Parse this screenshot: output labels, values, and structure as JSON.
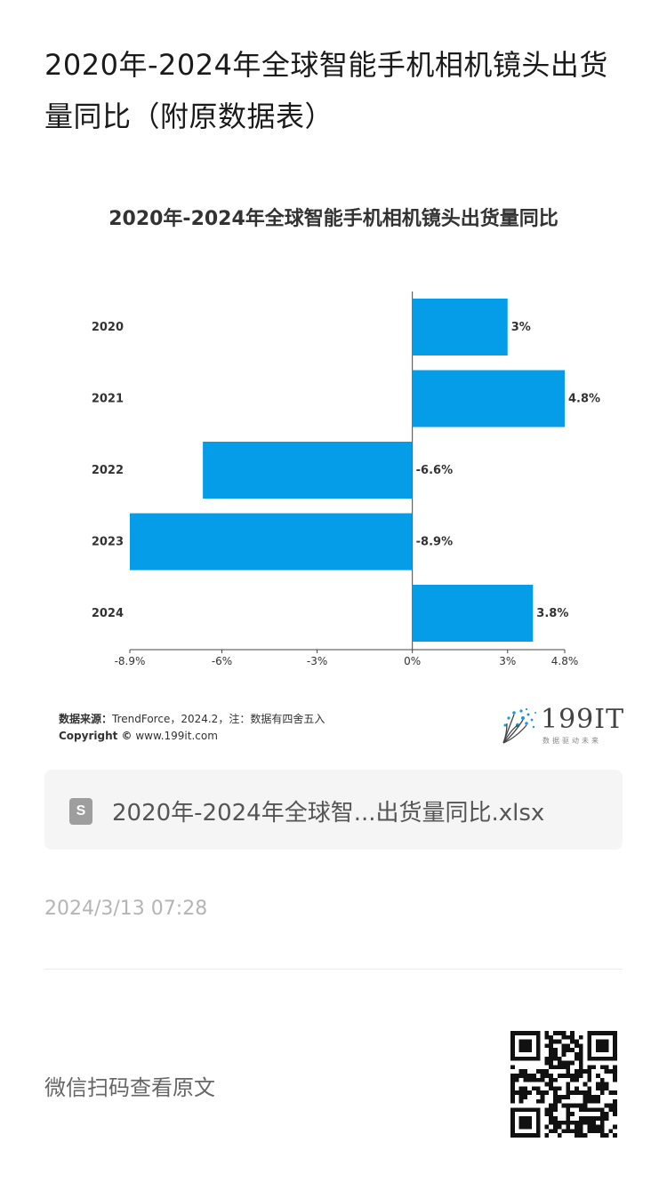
{
  "page": {
    "title": "2020年-2024年全球智能手机相机镜头出货量同比（附原数据表）"
  },
  "chart": {
    "source_label": "数据来源：",
    "source_text": "TrendForce，2024.2，注：数据有四舍五入",
    "copyright_label": "Copyright ©",
    "copyright_text": " www.199it.com",
    "logo_text": "199IT",
    "logo_sub": "数据驱动未来"
  },
  "chart_data": {
    "type": "bar",
    "orientation": "horizontal",
    "title": "2020年-2024年全球智能手机相机镜头出货量同比",
    "categories": [
      "2020",
      "2021",
      "2022",
      "2023",
      "2024"
    ],
    "values": [
      3,
      4.8,
      -6.6,
      -8.9,
      3.8
    ],
    "value_labels": [
      "3%",
      "4.8%",
      "-6.6%",
      "-8.9%",
      "3.8%"
    ],
    "xlim": [
      -8.9,
      4.8
    ],
    "xticks": [
      -8.9,
      -6,
      -3,
      0,
      3,
      4.8
    ],
    "xtick_labels": [
      "-8.9%",
      "-6%",
      "-3%",
      "0%",
      "3%",
      "4.8%"
    ],
    "grid": false,
    "bar_color": "#069de8"
  },
  "attachment": {
    "file_icon_letter": "S",
    "file_name": "2020年-2024年全球智...出货量同比.xlsx"
  },
  "meta": {
    "timestamp": "2024/3/13 07:28",
    "scan_text": "微信扫码查看原文"
  }
}
